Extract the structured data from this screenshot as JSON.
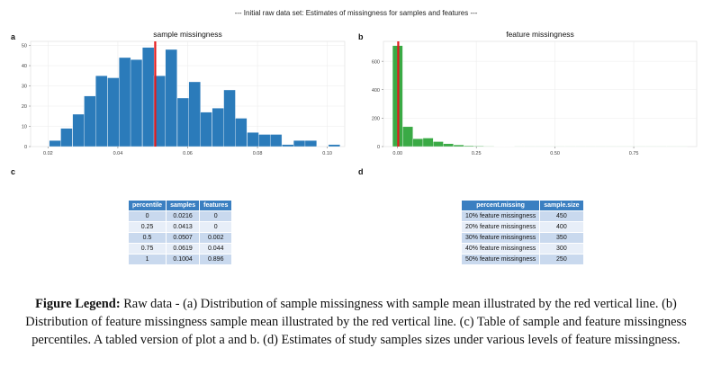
{
  "main_title": "--- Initial raw data set: Estimates of missingness for samples and features ---",
  "panels": {
    "a": "a",
    "b": "b",
    "c": "c",
    "d": "d"
  },
  "chart_data": [
    {
      "type": "bar",
      "title": "sample missingness",
      "xlabel": "",
      "ylabel": "",
      "xlim": [
        0.015,
        0.105
      ],
      "ylim": [
        0,
        52
      ],
      "x_ticks": [
        "0.02",
        "0.04",
        "0.06",
        "0.08",
        "0.10"
      ],
      "y_ticks": [
        "0",
        "10",
        "20",
        "30",
        "40",
        "50"
      ],
      "bin_width": 0.00333,
      "bin_centers": [
        0.022,
        0.0253,
        0.0287,
        0.032,
        0.0353,
        0.0387,
        0.042,
        0.0453,
        0.0487,
        0.052,
        0.0553,
        0.0587,
        0.062,
        0.0653,
        0.0687,
        0.072,
        0.0753,
        0.0787,
        0.082,
        0.0853,
        0.0887,
        0.092,
        0.0953,
        0.0987,
        0.102
      ],
      "values": [
        3,
        9,
        16,
        25,
        35,
        34,
        44,
        43,
        49,
        35,
        48,
        24,
        32,
        17,
        19,
        28,
        14,
        7,
        6,
        6,
        1,
        3,
        3,
        0,
        1
      ],
      "bar_color": "#2b7bba",
      "reference_line": {
        "x": 0.0507,
        "color": "#e41a1c"
      },
      "grid": true
    },
    {
      "type": "bar",
      "title": "feature missingness",
      "xlabel": "",
      "ylabel": "",
      "xlim": [
        -0.045,
        0.95
      ],
      "ylim": [
        0,
        740
      ],
      "x_ticks": [
        "0.00",
        "0.25",
        "0.50",
        "0.75"
      ],
      "y_ticks": [
        "0",
        "200",
        "400",
        "600"
      ],
      "bin_width": 0.0323,
      "bin_centers": [
        0.0,
        0.0323,
        0.0645,
        0.0968,
        0.129,
        0.161,
        0.194,
        0.226,
        0.258,
        0.29,
        0.323,
        0.355,
        0.387,
        0.419,
        0.452,
        0.484,
        0.516,
        0.548,
        0.581,
        0.613,
        0.645,
        0.677,
        0.71,
        0.742,
        0.774,
        0.806,
        0.839,
        0.871,
        0.903
      ],
      "values": [
        710,
        140,
        55,
        60,
        35,
        20,
        12,
        6,
        4,
        3,
        2,
        2,
        1,
        1,
        1,
        1,
        1,
        1,
        1,
        1,
        1,
        1,
        1,
        1,
        1,
        1,
        1,
        1,
        1
      ],
      "bar_color": "#3aaa45",
      "reference_line": {
        "x": 0.002,
        "color": "#e41a1c"
      },
      "grid": true
    }
  ],
  "table_c": {
    "headers": [
      "percentile",
      "samples",
      "features"
    ],
    "rows": [
      [
        "0",
        "0.0216",
        "0"
      ],
      [
        "0.25",
        "0.0413",
        "0"
      ],
      [
        "0.5",
        "0.0507",
        "0.002"
      ],
      [
        "0.75",
        "0.0619",
        "0.044"
      ],
      [
        "1",
        "0.1004",
        "0.896"
      ]
    ]
  },
  "table_d": {
    "headers": [
      "percent.missing",
      "sample.size"
    ],
    "rows": [
      [
        "10% feature missingness",
        "450"
      ],
      [
        "20% feature missingness",
        "400"
      ],
      [
        "30% feature missingness",
        "350"
      ],
      [
        "40% feature missingness",
        "300"
      ],
      [
        "50% feature missingness",
        "250"
      ]
    ]
  },
  "legend": {
    "label": "Figure Legend:",
    "text": " Raw data - (a) Distribution of sample missingness with sample mean illustrated by the red vertical line. (b) Distribution of feature missingness sample mean illustrated by the red vertical line. (c) Table of sample and feature missingness percentiles. A tabled version of plot a and b. (d) Estimates of study samples sizes under various levels of feature missingness."
  }
}
